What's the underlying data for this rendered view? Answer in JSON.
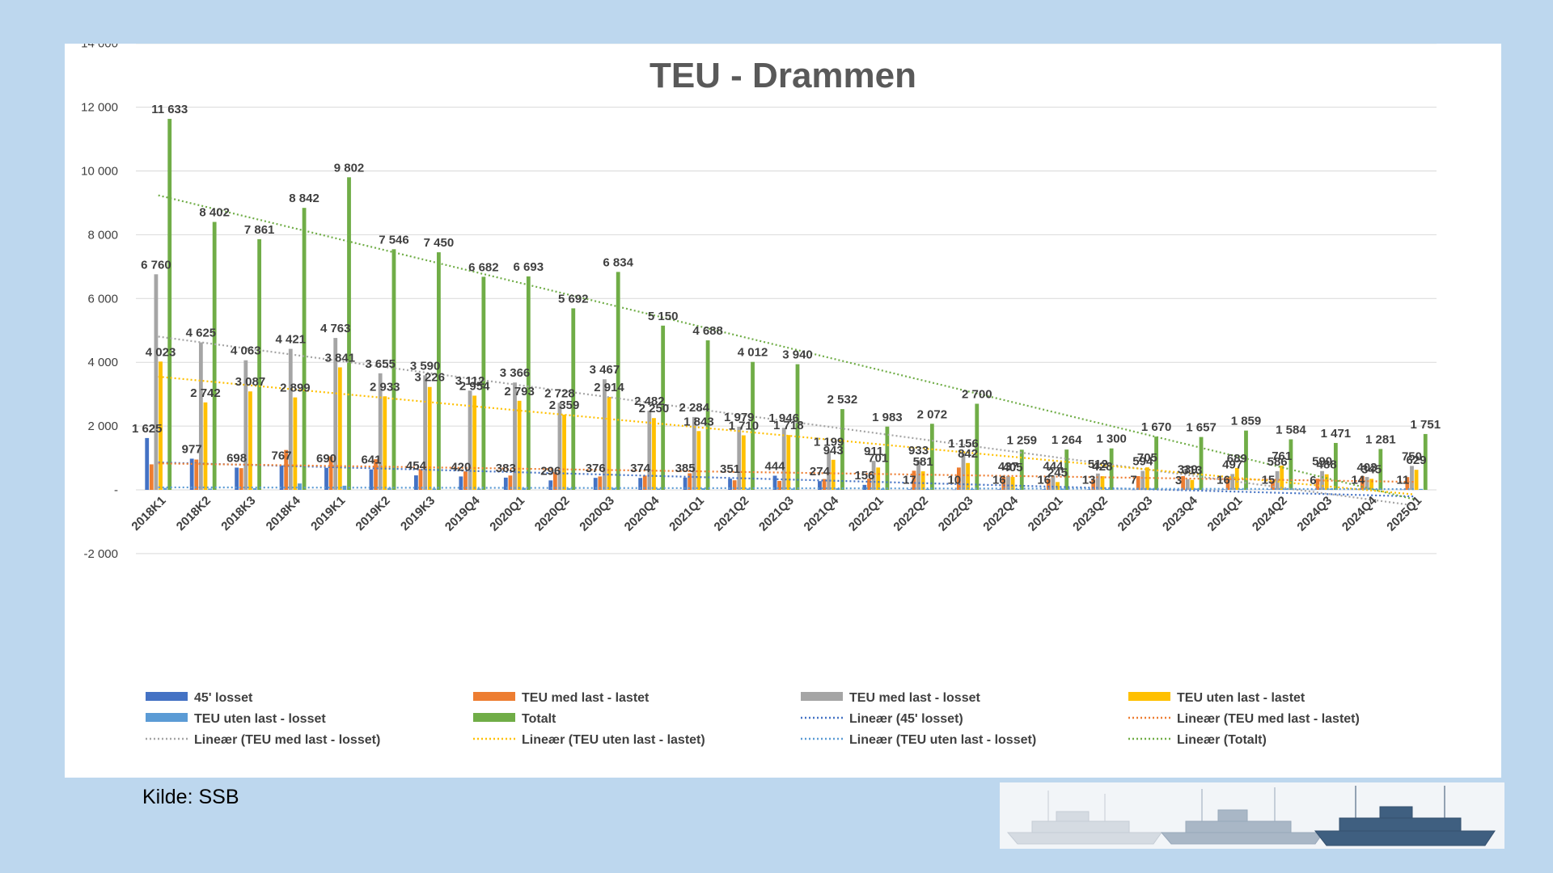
{
  "source_text": "Kilde: SSB",
  "logo": {
    "icon": "ships-silhouette-logo"
  },
  "chart_data": {
    "type": "bar",
    "title": "TEU - Drammen",
    "xlabel": "",
    "ylabel": "",
    "ylim": [
      -2000,
      14000
    ],
    "yticks": [
      -2000,
      0,
      2000,
      4000,
      6000,
      8000,
      10000,
      12000,
      14000
    ],
    "ytick_labels": [
      "-2 000",
      "-",
      "2 000",
      "4 000",
      "6 000",
      "8 000",
      "10 000",
      "12 000",
      "14 000"
    ],
    "grid": true,
    "legend_position": "bottom",
    "categories": [
      "2018K1",
      "2018K2",
      "2018K3",
      "2018K4",
      "2019K1",
      "2019K2",
      "2019K3",
      "2019Q4",
      "2020Q1",
      "2020Q2",
      "2020Q3",
      "2020Q4",
      "2021Q1",
      "2021Q2",
      "2021Q3",
      "2021Q4",
      "2022Q1",
      "2022Q2",
      "2022Q3",
      "2022Q4",
      "2023Q1",
      "2023Q2",
      "2023Q3",
      "2023Q4",
      "2024Q1",
      "2024Q2",
      "2024Q3",
      "2024Q4",
      "2025Q1"
    ],
    "series": [
      {
        "name": "45' losset",
        "color": "#4472c4",
        "values": [
          1625,
          977,
          698,
          767,
          690,
          641,
          454,
          420,
          383,
          296,
          376,
          374,
          385,
          351,
          444,
          274,
          156,
          17,
          10,
          16,
          16,
          13,
          7,
          3,
          16,
          15,
          6,
          14,
          11
        ],
        "labels": [
          "1 625",
          "977",
          "698",
          "767",
          "690",
          "641",
          "454",
          "420",
          "383",
          "296",
          "376",
          "374",
          "385",
          "351",
          "444",
          "274",
          "156",
          "17",
          "10",
          "16",
          "16",
          "13",
          "7",
          "3",
          "16",
          "15",
          "6",
          "14",
          "11"
        ]
      },
      {
        "name": "TEU med last - lastet",
        "color": "#ed7d31",
        "values": [
          800,
          950,
          680,
          1250,
          1050,
          960,
          650,
          580,
          450,
          550,
          420,
          450,
          520,
          300,
          280,
          340,
          350,
          600,
          700,
          400,
          350,
          330,
          430,
          430,
          380,
          280,
          350,
          430,
          400
        ],
        "labels": []
      },
      {
        "name": "TEU med last - losset",
        "color": "#a5a5a5",
        "values": [
          6760,
          4625,
          4063,
          4421,
          4763,
          3655,
          3590,
          3112,
          3366,
          2728,
          3467,
          2482,
          2284,
          1979,
          1946,
          1199,
          911,
          933,
          1156,
          437,
          444,
          512,
          594,
          339,
          497,
          586,
          590,
          403,
          750
        ],
        "labels": [
          "6 760",
          "4 625",
          "4 063",
          "4 421",
          "4 763",
          "3 655",
          "3 590",
          "3 112",
          "3 366",
          "2 728",
          "3 467",
          "2 482",
          "2 284",
          "1 979",
          "1 946",
          "1 199",
          "911",
          "933",
          "1 156",
          "437",
          "444",
          "512",
          "594",
          "339",
          "497",
          "586",
          "590",
          "403",
          "750"
        ]
      },
      {
        "name": "TEU uten last - lastet",
        "color": "#ffc000",
        "values": [
          4023,
          2742,
          3087,
          2899,
          3841,
          2933,
          3226,
          2954,
          2793,
          2359,
          2914,
          2250,
          1843,
          1710,
          1718,
          943,
          701,
          581,
          842,
          405,
          245,
          428,
          705,
          313,
          689,
          761,
          488,
          345,
          629
        ],
        "labels": [
          "4 023",
          "2 742",
          "3 087",
          "2 899",
          "3 841",
          "2 933",
          "3 226",
          "2 954",
          "2 793",
          "2 359",
          "2 914",
          "2 250",
          "1 843",
          "1 710",
          "1 718",
          "943",
          "701",
          "581",
          "842",
          "405",
          "245",
          "428",
          "705",
          "313",
          "689",
          "761",
          "488",
          "345",
          "629"
        ]
      },
      {
        "name": "TEU uten last - losset",
        "color": "#5b9bd5",
        "values": [
          60,
          40,
          50,
          200,
          130,
          60,
          40,
          40,
          60,
          50,
          60,
          40,
          50,
          40,
          40,
          50,
          40,
          30,
          30,
          30,
          40,
          30,
          40,
          40,
          30,
          40,
          40,
          30,
          30
        ],
        "labels": []
      },
      {
        "name": "Totalt",
        "color": "#70ad47",
        "values": [
          11633,
          8402,
          7861,
          8842,
          9802,
          7546,
          7450,
          6682,
          6693,
          5692,
          6834,
          5150,
          4688,
          4012,
          3940,
          2532,
          1983,
          2072,
          2700,
          1259,
          1264,
          1300,
          1670,
          1657,
          1859,
          1584,
          1471,
          1281,
          1751
        ],
        "labels": [
          "11 633",
          "8 402",
          "7 861",
          "8 842",
          "9 802",
          "7 546",
          "7 450",
          "6 682",
          "6 693",
          "5 692",
          "6 834",
          "5 150",
          "4 688",
          "4 012",
          "3 940",
          "2 532",
          "1 983",
          "2 072",
          "2 700",
          "1 259",
          "1 264",
          "1 300",
          "1 670",
          "1 657",
          "1 859",
          "1 584",
          "1 471",
          "1 281",
          "1 751"
        ]
      }
    ],
    "trendlines": [
      {
        "name": "Lineær (45' losset)",
        "color": "#4472c4",
        "series": "45' losset"
      },
      {
        "name": "Lineær (TEU med last - lastet)",
        "color": "#ed7d31",
        "series": "TEU med last - lastet"
      },
      {
        "name": "Lineær (TEU med last - losset)",
        "color": "#a5a5a5",
        "series": "TEU med last - losset"
      },
      {
        "name": "Lineær (TEU uten last - lastet)",
        "color": "#ffc000",
        "series": "TEU uten last - lastet"
      },
      {
        "name": "Lineær (TEU uten last - losset)",
        "color": "#5b9bd5",
        "series": "TEU uten last - losset"
      },
      {
        "name": "Lineær (Totalt)",
        "color": "#70ad47",
        "series": "Totalt"
      }
    ]
  }
}
